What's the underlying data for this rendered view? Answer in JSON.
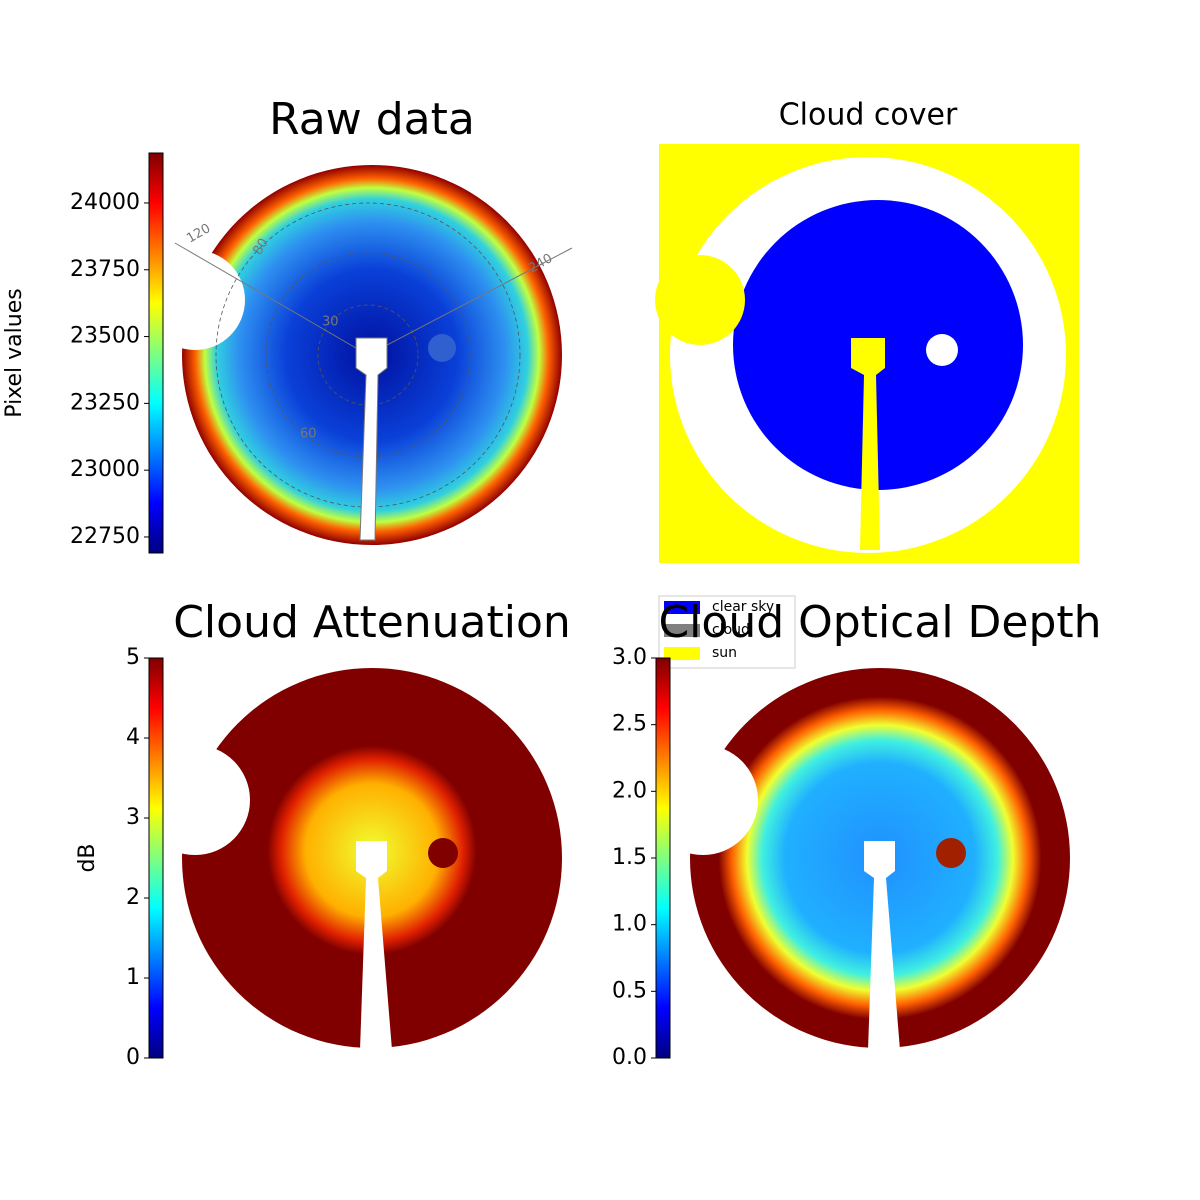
{
  "chart_data": [
    {
      "type": "image",
      "title": "Raw data",
      "colorbar_label": "Pixel values",
      "ylim": [
        22690,
        24187
      ],
      "yticks": [
        22750,
        23000,
        23250,
        23500,
        23750,
        24000
      ],
      "annotations": [
        "120",
        "80",
        "240",
        "30",
        "60"
      ]
    },
    {
      "type": "classes",
      "title": "Cloud cover",
      "legend": [
        {
          "name": "clear sky",
          "color": "#0000ff"
        },
        {
          "name": "cloud",
          "color": "#808080"
        },
        {
          "name": "sun",
          "color": "#ffff00"
        }
      ]
    },
    {
      "type": "image",
      "title": "Cloud Attenuation",
      "colorbar_label": "dB",
      "ylim": [
        0,
        5
      ],
      "yticks": [
        0,
        1,
        2,
        3,
        4,
        5
      ]
    },
    {
      "type": "image",
      "title": "Cloud Optical Depth",
      "ylim": [
        0,
        3
      ],
      "yticks": [
        {
          "value": 0,
          "label": "0.0"
        },
        0.5,
        {
          "value": 1,
          "label": "1.0"
        },
        1.5,
        {
          "value": 2,
          "label": "2.0"
        },
        2.5,
        {
          "value": 3,
          "label": "3.0"
        }
      ]
    }
  ]
}
